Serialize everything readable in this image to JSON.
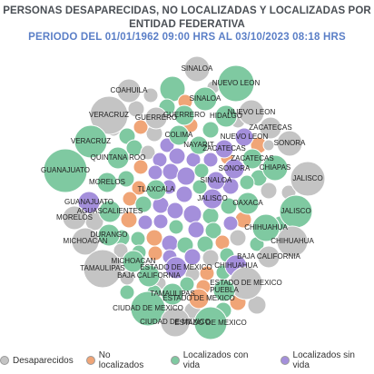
{
  "chart_data": {
    "type": "packed-bubble",
    "title_lines": [
      "PERSONAS DESAPARECIDAS, NO LOCALIZADAS Y LOCALIZADAS POR",
      "ENTIDAD FEDERATIVA"
    ],
    "subtitle": "PERIODO DEL 01/01/1962 09:00 HRS AL 03/10/2023 08:18 HRS",
    "legend_position": "bottom",
    "series": [
      {
        "name": "Desaparecidos",
        "color": "#c4c4c4"
      },
      {
        "name": "No localizados",
        "color": "#f0a577"
      },
      {
        "name": "Localizados con vida",
        "color": "#7fc9a1"
      },
      {
        "name": "Localizados sin vida",
        "color": "#a48fdb"
      }
    ],
    "labeled_bubbles": [
      {
        "label": "SINALOA",
        "series": "Desaparecidos"
      },
      {
        "label": "NUEVO LEON",
        "series": "Localizados con vida"
      },
      {
        "label": "COAHUILA",
        "series": "Desaparecidos"
      },
      {
        "label": "SINALOA",
        "series": "Localizados con vida"
      },
      {
        "label": "HIDALGO",
        "series": "Localizados con vida"
      },
      {
        "label": "VERACRUZ",
        "series": "Desaparecidos"
      },
      {
        "label": "GUERRERO",
        "series": "Desaparecidos"
      },
      {
        "label": "GUERRERO",
        "series": "Localizados con vida"
      },
      {
        "label": "NUEVO LEON",
        "series": "Desaparecidos"
      },
      {
        "label": "ZACATECAS",
        "series": "Desaparecidos"
      },
      {
        "label": "COLIMA",
        "series": "Localizados con vida"
      },
      {
        "label": "VERACRUZ",
        "series": "Localizados con vida"
      },
      {
        "label": "SONORA",
        "series": "Desaparecidos"
      },
      {
        "label": "NAYARIT",
        "series": "Localizados con vida"
      },
      {
        "label": "ZACATECAS",
        "series": "Localizados sin vida"
      },
      {
        "label": "NUEVO LEON",
        "series": "Localizados sin vida"
      },
      {
        "label": "QUINTANA ROO",
        "series": "Localizados con vida"
      },
      {
        "label": "ZACATECAS",
        "series": "Localizados con vida"
      },
      {
        "label": "SONORA",
        "series": "Localizados sin vida"
      },
      {
        "label": "CHIAPAS",
        "series": "Localizados con vida"
      },
      {
        "label": "GUANAJUATO",
        "series": "Localizados con vida"
      },
      {
        "label": "JALISCO",
        "series": "Desaparecidos"
      },
      {
        "label": "SINALOA",
        "series": "Localizados sin vida"
      },
      {
        "label": "MORELOS",
        "series": "Localizados con vida"
      },
      {
        "label": "TLAXCALA",
        "series": "Localizados con vida"
      },
      {
        "label": "JALISCO",
        "series": "Localizados sin vida"
      },
      {
        "label": "OAXACA",
        "series": "Localizados con vida"
      },
      {
        "label": "GUANAJUATO",
        "series": "Localizados sin vida"
      },
      {
        "label": "JALISCO",
        "series": "Localizados con vida"
      },
      {
        "label": "AGUASCALIENTES",
        "series": "Localizados con vida"
      },
      {
        "label": "MORELOS",
        "series": "Desaparecidos"
      },
      {
        "label": "CHIHUAHUA",
        "series": "Localizados con vida"
      },
      {
        "label": "MICHOACAN",
        "series": "Desaparecidos"
      },
      {
        "label": "DURANGO",
        "series": "Localizados con vida"
      },
      {
        "label": "CHIHUAHUA",
        "series": "Desaparecidos"
      },
      {
        "label": "TAMAULIPAS",
        "series": "Desaparecidos"
      },
      {
        "label": "MICHOACAN",
        "series": "Localizados con vida"
      },
      {
        "label": "BAJA CALIFORNIA",
        "series": "Desaparecidos"
      },
      {
        "label": "ESTADO DE MEXICO",
        "series": "Localizados sin vida"
      },
      {
        "label": "CHIHUAHUA",
        "series": "Localizados sin vida"
      },
      {
        "label": "BAJA CALIFORNIA",
        "series": "Localizados con vida"
      },
      {
        "label": "ESTADO DE MEXICO",
        "series": "Desaparecidos"
      },
      {
        "label": "PUEBLA",
        "series": "Localizados con vida"
      },
      {
        "label": "TAMAULIPAS",
        "series": "Localizados con vida"
      },
      {
        "label": "ESTADO DE MEXICO",
        "series": "No localizados"
      },
      {
        "label": "CIUDAD DE MEXICO",
        "series": "Localizados con vida"
      },
      {
        "label": "CIUDAD DE MEXICO",
        "series": "Desaparecidos"
      },
      {
        "label": "ESTADO DE MEXICO",
        "series": "Localizados con vida"
      }
    ]
  }
}
